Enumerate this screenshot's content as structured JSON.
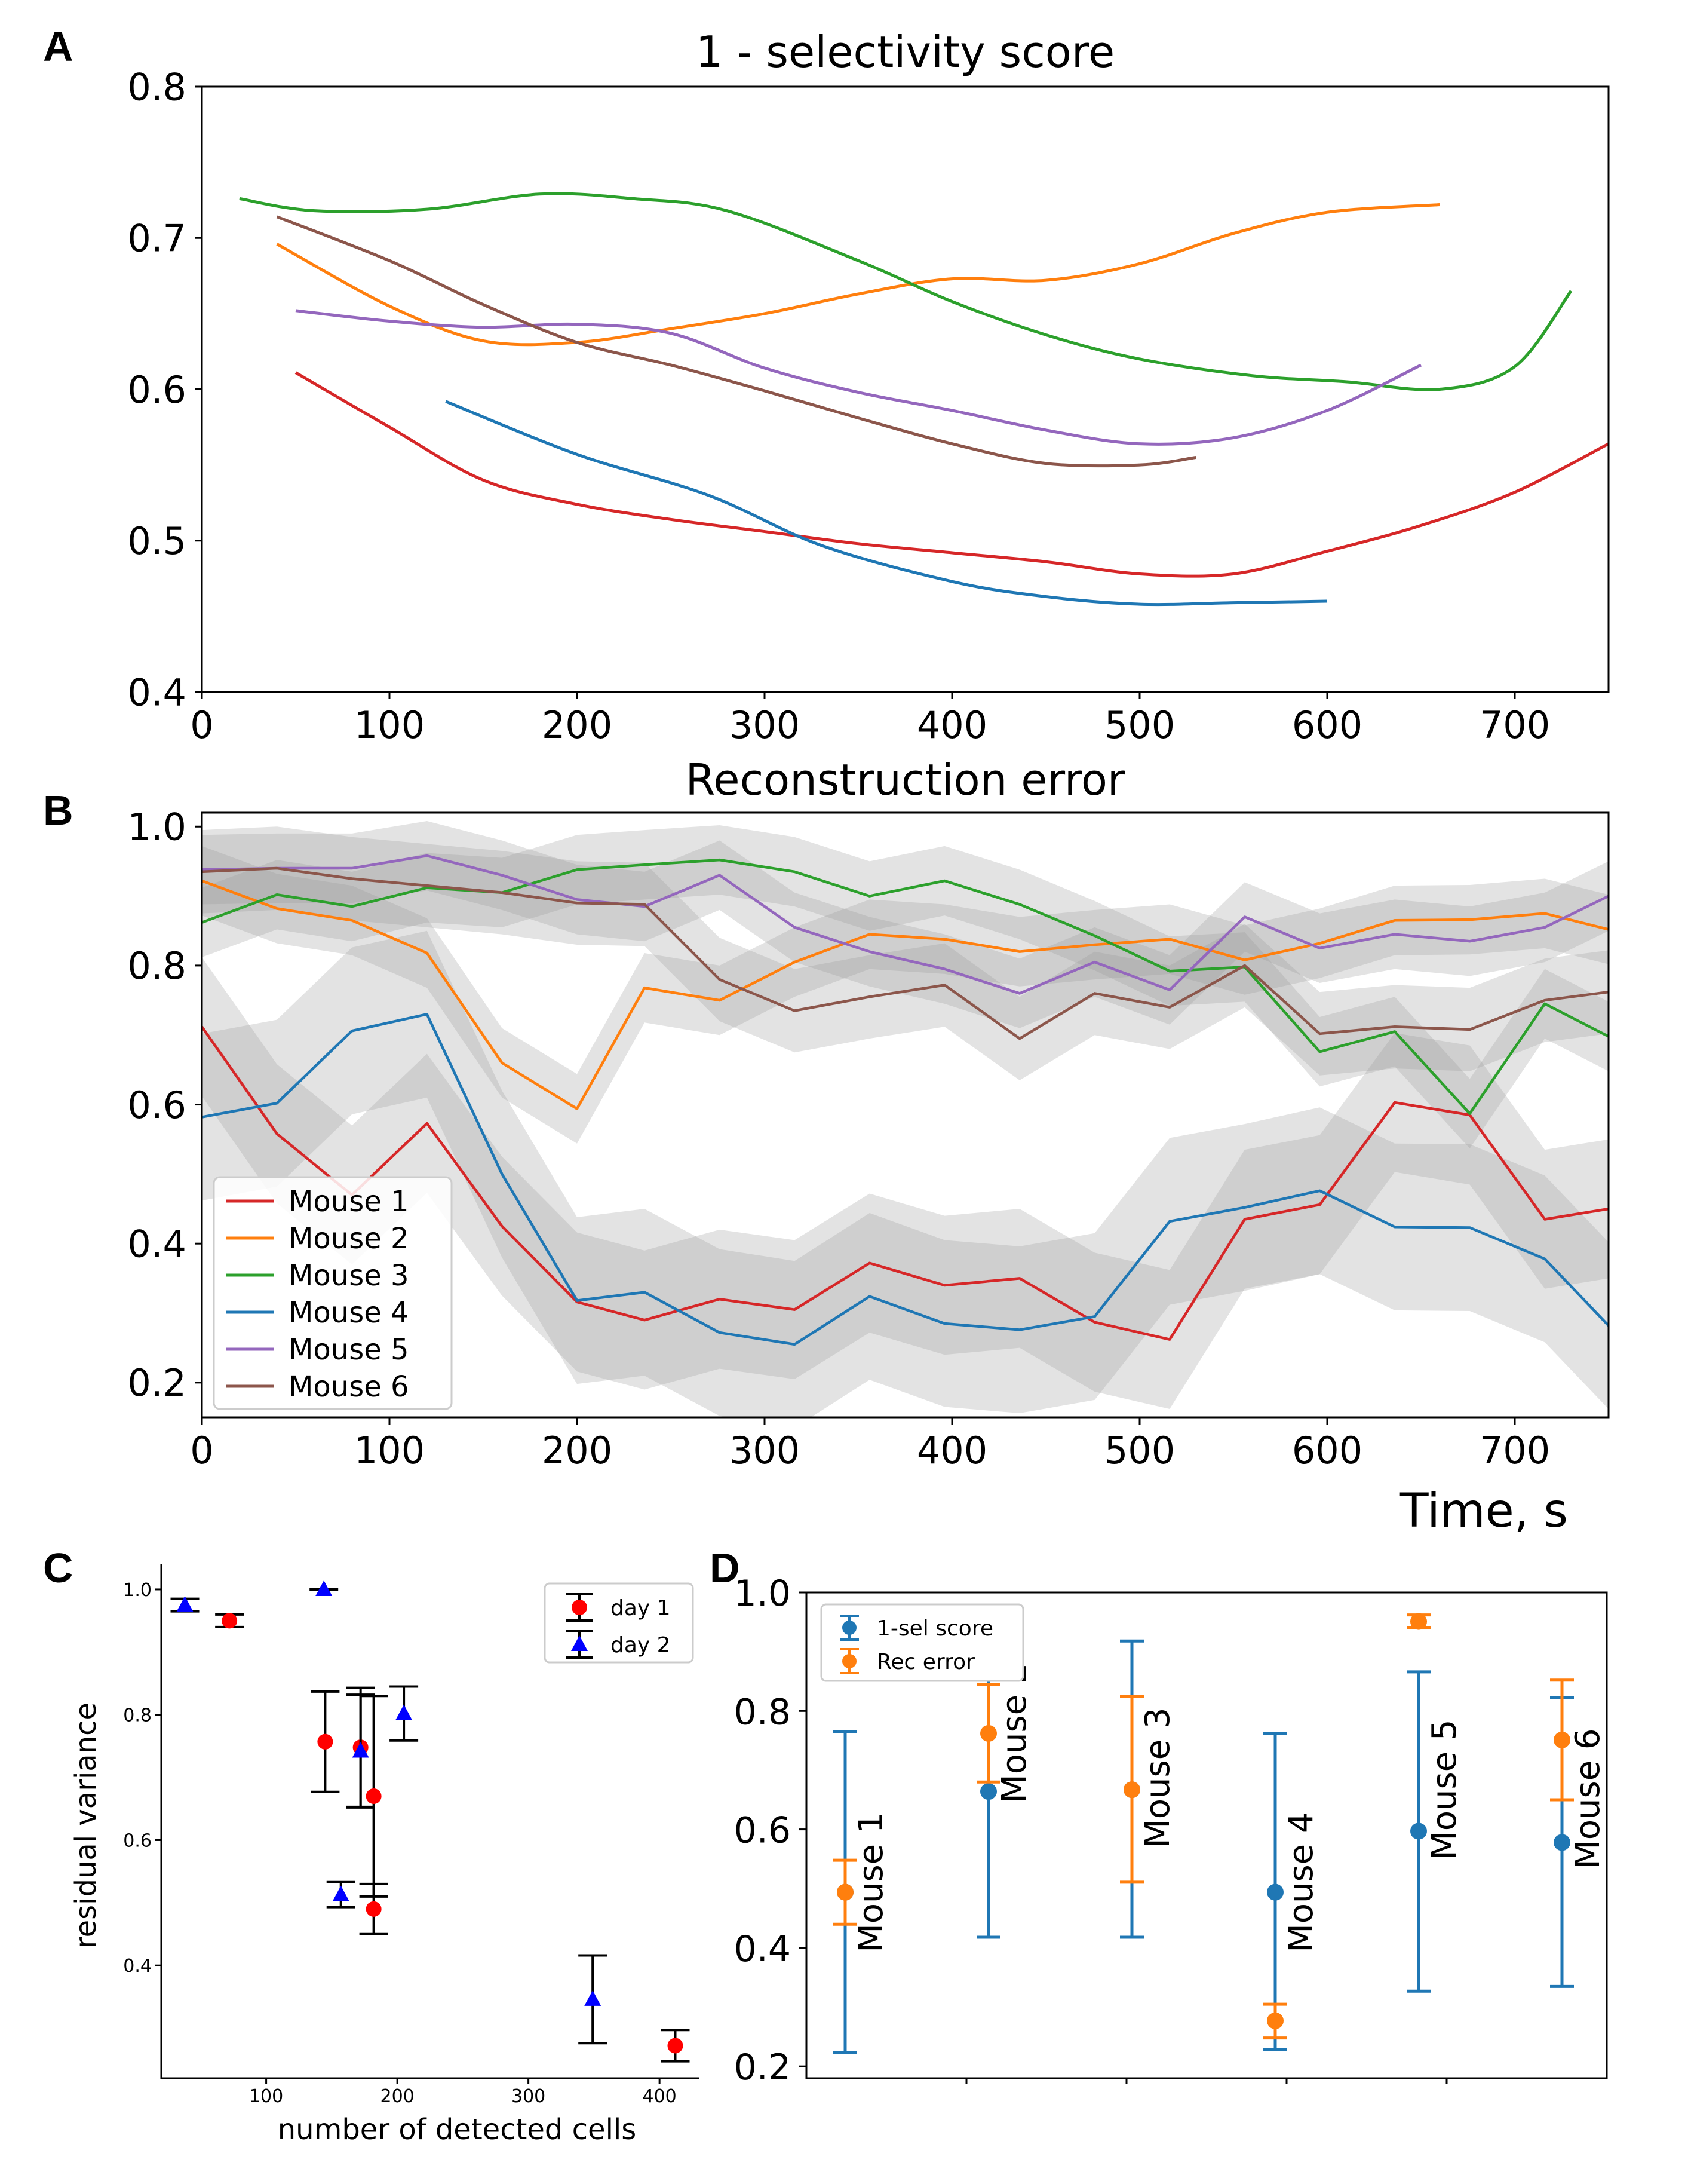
{
  "colors": {
    "mouse1": "#d62728",
    "mouse2": "#ff7f0e",
    "mouse3": "#2ca02c",
    "mouse4": "#1f77b4",
    "mouse5": "#9467bd",
    "mouse6": "#8c564b",
    "band": "#9a9a9a",
    "day1": "#ff0000",
    "day2": "#0000ff",
    "axis": "#000000"
  },
  "chart_data": [
    {
      "panel": "A",
      "type": "line",
      "title": "1 - selectivity score",
      "xlabel": "",
      "ylabel": "",
      "xlim": [
        0,
        750
      ],
      "ylim": [
        0.4,
        0.8
      ],
      "xticks": [
        0,
        100,
        200,
        300,
        400,
        500,
        600,
        700
      ],
      "yticks": [
        0.4,
        0.5,
        0.6,
        0.7,
        0.8
      ],
      "legend": "none",
      "series": [
        {
          "name": "Mouse 1",
          "color_key": "mouse1",
          "x": [
            50,
            100,
            150,
            200,
            250,
            300,
            350,
            400,
            450,
            500,
            550,
            600,
            650,
            700,
            750
          ],
          "y": [
            0.611,
            0.575,
            0.54,
            0.524,
            0.514,
            0.506,
            0.498,
            0.492,
            0.486,
            0.478,
            0.478,
            0.493,
            0.51,
            0.532,
            0.564
          ]
        },
        {
          "name": "Mouse 2",
          "color_key": "mouse2",
          "x": [
            40,
            100,
            150,
            200,
            250,
            300,
            350,
            400,
            450,
            500,
            550,
            600,
            660
          ],
          "y": [
            0.696,
            0.655,
            0.632,
            0.631,
            0.64,
            0.65,
            0.663,
            0.673,
            0.672,
            0.683,
            0.703,
            0.717,
            0.722
          ]
        },
        {
          "name": "Mouse 3",
          "color_key": "mouse3",
          "x": [
            20,
            60,
            120,
            180,
            230,
            280,
            350,
            400,
            450,
            500,
            560,
            610,
            660,
            700,
            730
          ],
          "y": [
            0.726,
            0.718,
            0.719,
            0.729,
            0.726,
            0.718,
            0.685,
            0.658,
            0.636,
            0.62,
            0.609,
            0.605,
            0.6,
            0.615,
            0.665
          ]
        },
        {
          "name": "Mouse 4",
          "color_key": "mouse4",
          "x": [
            130,
            200,
            270,
            330,
            400,
            450,
            500,
            550,
            600
          ],
          "y": [
            0.592,
            0.557,
            0.53,
            0.497,
            0.473,
            0.463,
            0.458,
            0.459,
            0.46
          ]
        },
        {
          "name": "Mouse 5",
          "color_key": "mouse5",
          "x": [
            50,
            100,
            150,
            200,
            250,
            300,
            350,
            400,
            450,
            500,
            550,
            600,
            650
          ],
          "y": [
            0.652,
            0.645,
            0.641,
            0.643,
            0.637,
            0.614,
            0.598,
            0.586,
            0.573,
            0.564,
            0.568,
            0.586,
            0.616
          ]
        },
        {
          "name": "Mouse 6",
          "color_key": "mouse6",
          "x": [
            40,
            100,
            150,
            200,
            250,
            300,
            350,
            400,
            450,
            500,
            530
          ],
          "y": [
            0.714,
            0.685,
            0.656,
            0.631,
            0.616,
            0.599,
            0.581,
            0.564,
            0.551,
            0.55,
            0.555
          ]
        }
      ]
    },
    {
      "panel": "B",
      "type": "line",
      "title": "Reconstruction error",
      "xlabel": "Time, s",
      "ylabel": "",
      "xlim": [
        0,
        750
      ],
      "ylim": [
        0.15,
        1.02
      ],
      "xticks": [
        0,
        100,
        200,
        300,
        400,
        500,
        600,
        700
      ],
      "yticks": [
        0.2,
        0.4,
        0.6,
        0.8,
        1.0
      ],
      "legend": "lower-left",
      "x": [
        0,
        40,
        80,
        120,
        160,
        200,
        236,
        276,
        316,
        356,
        396,
        436,
        476,
        516,
        556,
        596,
        636,
        676,
        716,
        750
      ],
      "series": [
        {
          "name": "Mouse 1",
          "color_key": "mouse1",
          "band": 0.1,
          "values": [
            0.712,
            0.558,
            0.47,
            0.573,
            0.425,
            0.316,
            0.29,
            0.32,
            0.305,
            0.372,
            0.34,
            0.35,
            0.287,
            0.262,
            0.435,
            0.456,
            0.603,
            0.585,
            0.435,
            0.45
          ]
        },
        {
          "name": "Mouse 2",
          "color_key": "mouse2",
          "band": 0.05,
          "values": [
            0.922,
            0.882,
            0.865,
            0.818,
            0.66,
            0.594,
            0.768,
            0.75,
            0.805,
            0.845,
            0.838,
            0.82,
            0.83,
            0.838,
            0.808,
            0.832,
            0.865,
            0.866,
            0.875,
            0.852
          ]
        },
        {
          "name": "Mouse 3",
          "color_key": "mouse3",
          "band": 0.05,
          "values": [
            0.862,
            0.902,
            0.885,
            0.912,
            0.905,
            0.938,
            0.945,
            0.952,
            0.935,
            0.9,
            0.922,
            0.888,
            0.843,
            0.792,
            0.798,
            0.676,
            0.705,
            0.587,
            0.745,
            0.698
          ]
        },
        {
          "name": "Mouse 4",
          "color_key": "mouse4",
          "band": 0.12,
          "values": [
            0.582,
            0.602,
            0.706,
            0.73,
            0.5,
            0.318,
            0.33,
            0.272,
            0.255,
            0.324,
            0.285,
            0.276,
            0.295,
            0.432,
            0.452,
            0.476,
            0.424,
            0.423,
            0.378,
            0.282
          ]
        },
        {
          "name": "Mouse 5",
          "color_key": "mouse5",
          "band": 0.05,
          "values": [
            0.938,
            0.94,
            0.94,
            0.958,
            0.93,
            0.895,
            0.885,
            0.93,
            0.855,
            0.82,
            0.795,
            0.76,
            0.805,
            0.765,
            0.87,
            0.825,
            0.845,
            0.835,
            0.855,
            0.9
          ]
        },
        {
          "name": "Mouse 6",
          "color_key": "mouse6",
          "band": 0.06,
          "values": [
            0.935,
            0.94,
            0.925,
            0.915,
            0.905,
            0.89,
            0.888,
            0.78,
            0.735,
            0.755,
            0.772,
            0.695,
            0.76,
            0.74,
            0.8,
            0.702,
            0.712,
            0.708,
            0.75,
            0.762
          ]
        }
      ]
    },
    {
      "panel": "C",
      "type": "scatter",
      "title": "",
      "xlabel": "number of detected cells",
      "ylabel": "residual variance",
      "xlim": [
        20,
        430
      ],
      "ylim": [
        0.22,
        1.04
      ],
      "xticks": [
        100,
        200,
        300,
        400
      ],
      "yticks": [
        0.4,
        0.6,
        0.8,
        1.0
      ],
      "legend": "top-right",
      "series": [
        {
          "name": "day 1",
          "color_key": "day1",
          "marker": "circle",
          "points": [
            {
              "x": 72,
              "y": 0.95,
              "err": 0.01
            },
            {
              "x": 145,
              "y": 0.757,
              "err": 0.08
            },
            {
              "x": 172,
              "y": 0.748,
              "err": 0.095
            },
            {
              "x": 182,
              "y": 0.67,
              "err": 0.16
            },
            {
              "x": 182,
              "y": 0.49,
              "err": 0.04
            },
            {
              "x": 412,
              "y": 0.272,
              "err": 0.025
            }
          ]
        },
        {
          "name": "day 2",
          "color_key": "day2",
          "marker": "triangle",
          "points": [
            {
              "x": 38,
              "y": 0.975,
              "err": 0.01
            },
            {
              "x": 144,
              "y": 1.0,
              "err": 0.0
            },
            {
              "x": 157,
              "y": 0.513,
              "err": 0.02
            },
            {
              "x": 172,
              "y": 0.742,
              "err": 0.09
            },
            {
              "x": 205,
              "y": 0.802,
              "err": 0.043
            },
            {
              "x": 349,
              "y": 0.346,
              "err": 0.07
            }
          ]
        }
      ]
    },
    {
      "panel": "D",
      "type": "scatter",
      "title": "",
      "xlabel": "",
      "ylabel": "",
      "xlim": [
        0,
        1
      ],
      "ylim": [
        0.18,
        1.0
      ],
      "yticks": [
        0.2,
        0.4,
        0.6,
        0.8,
        1.0
      ],
      "legend": "top-left",
      "categories": [
        "Mouse 1",
        "Mouse 2",
        "Mouse 3",
        "Mouse 4",
        "Mouse 5",
        "Mouse 6"
      ],
      "series": [
        {
          "name": "1-sel score",
          "color_key": "mouse4",
          "values": [
            0.494,
            0.664,
            0.667,
            0.494,
            0.597,
            0.578
          ],
          "lower": [
            0.223,
            0.418,
            0.418,
            0.228,
            0.327,
            0.335
          ],
          "upper": [
            0.765,
            0.91,
            0.918,
            0.762,
            0.866,
            0.822
          ]
        },
        {
          "name": "Rec error",
          "color_key": "mouse2",
          "values": [
            0.494,
            0.762,
            0.667,
            0.277,
            0.951,
            0.751
          ],
          "lower": [
            0.44,
            0.68,
            0.511,
            0.248,
            0.94,
            0.65
          ],
          "upper": [
            0.548,
            0.845,
            0.825,
            0.305,
            0.962,
            0.852
          ]
        }
      ]
    }
  ],
  "panel_labels": [
    "A",
    "B",
    "C",
    "D"
  ]
}
